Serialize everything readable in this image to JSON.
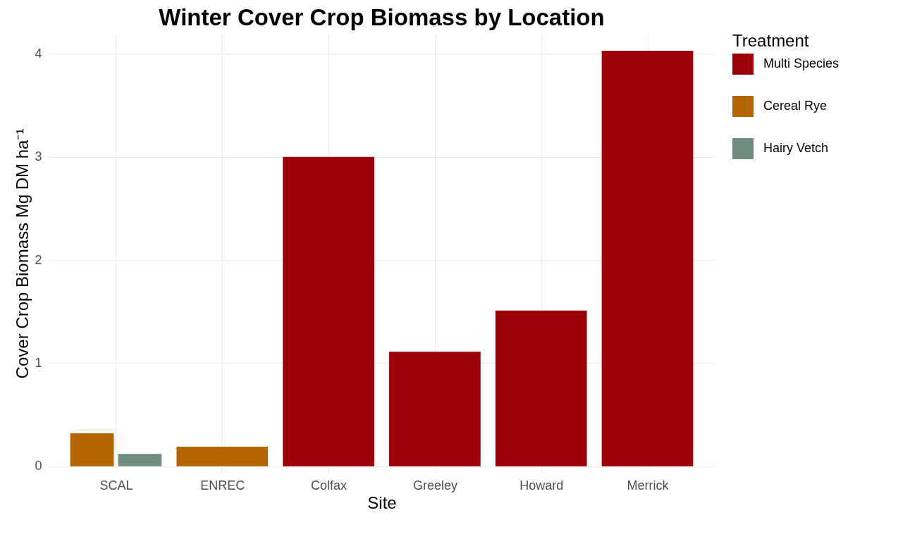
{
  "chart_data": {
    "type": "bar",
    "title": "Winter Cover Crop Biomass by Location",
    "xlabel": "Site",
    "ylabel": "Cover Crop Biomass Mg DM ha⁻¹",
    "legend_title": "Treatment",
    "categories": [
      "SCAL",
      "ENREC",
      "Colfax",
      "Greeley",
      "Howard",
      "Merrick"
    ],
    "series": [
      {
        "name": "Multi Species",
        "color": "#9b0008",
        "values": [
          null,
          null,
          3.0,
          1.11,
          1.51,
          4.03
        ]
      },
      {
        "name": "Cereal Rye",
        "color": "#b46504",
        "values": [
          0.32,
          0.19,
          null,
          null,
          null,
          null
        ]
      },
      {
        "name": "Hairy Vetch",
        "color": "#6f8e80",
        "values": [
          0.12,
          null,
          null,
          null,
          null,
          null
        ]
      }
    ],
    "ylim": [
      -0.07,
      4.2
    ],
    "yticks": [
      0,
      1,
      2,
      3,
      4
    ],
    "grid": true,
    "legend": "right"
  }
}
